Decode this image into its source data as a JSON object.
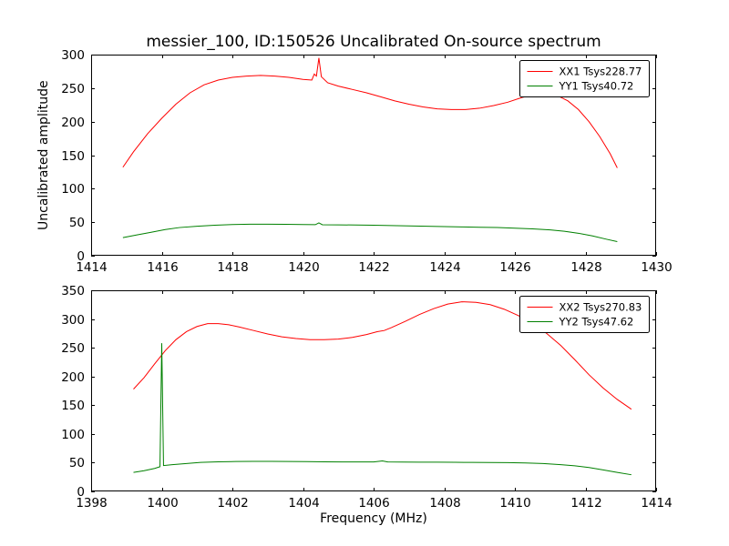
{
  "figure": {
    "title": "messier_100, ID:150526 Uncalibrated On-source spectrum",
    "xlabel": "Frequency (MHz)",
    "ylabel": "Uncalibrated amplitude",
    "background_color": "#ffffff",
    "frame_color": "#000000"
  },
  "chart_data": [
    {
      "type": "line",
      "subplot": "top",
      "xlim": [
        1414,
        1430
      ],
      "ylim": [
        0,
        300
      ],
      "xticks": [
        1414,
        1416,
        1418,
        1420,
        1422,
        1424,
        1426,
        1428,
        1430
      ],
      "yticks": [
        0,
        50,
        100,
        150,
        200,
        250,
        300
      ],
      "grid": false,
      "legend_position": "upper right",
      "series": [
        {
          "name": "XX1 Tsys228.77",
          "color": "#ff0000",
          "x": [
            1414.9,
            1415.2,
            1415.6,
            1416.0,
            1416.4,
            1416.8,
            1417.2,
            1417.6,
            1418.0,
            1418.4,
            1418.8,
            1419.2,
            1419.6,
            1420.0,
            1420.25,
            1420.32,
            1420.38,
            1420.45,
            1420.52,
            1420.7,
            1421.0,
            1421.4,
            1421.8,
            1422.2,
            1422.6,
            1423.0,
            1423.4,
            1423.8,
            1424.2,
            1424.6,
            1425.0,
            1425.4,
            1425.8,
            1426.2,
            1426.6,
            1426.9,
            1427.2,
            1427.5,
            1427.8,
            1428.1,
            1428.4,
            1428.7,
            1428.9
          ],
          "y": [
            132,
            155,
            182,
            205,
            226,
            243,
            255,
            262,
            266,
            268,
            269,
            268,
            266,
            263,
            262,
            271,
            268,
            295,
            267,
            258,
            253,
            248,
            243,
            237,
            231,
            226,
            222,
            219,
            218,
            218,
            220,
            224,
            229,
            236,
            241,
            242,
            239,
            231,
            218,
            200,
            178,
            152,
            131
          ]
        },
        {
          "name": "YY1 Tsys40.72",
          "color": "#008000",
          "x": [
            1414.9,
            1415.3,
            1415.7,
            1416.1,
            1416.5,
            1417.0,
            1417.5,
            1418.0,
            1418.5,
            1419.0,
            1419.5,
            1420.0,
            1420.35,
            1420.45,
            1420.55,
            1421.0,
            1421.5,
            1422.0,
            1422.5,
            1423.0,
            1423.5,
            1424.0,
            1424.5,
            1425.0,
            1425.5,
            1426.0,
            1426.5,
            1427.0,
            1427.4,
            1427.8,
            1428.2,
            1428.6,
            1428.9
          ],
          "y": [
            27,
            31,
            35,
            39,
            42,
            44,
            45.5,
            46.5,
            47,
            47,
            46.8,
            46.5,
            46.3,
            49,
            46.2,
            46,
            45.8,
            45.5,
            45,
            44.5,
            44,
            43.5,
            43,
            42.5,
            42,
            41,
            40,
            38.5,
            36.5,
            33.5,
            29.5,
            24.5,
            21
          ]
        }
      ]
    },
    {
      "type": "line",
      "subplot": "bottom",
      "xlim": [
        1398,
        1414
      ],
      "ylim": [
        0,
        350
      ],
      "xticks": [
        1398,
        1400,
        1402,
        1404,
        1406,
        1408,
        1410,
        1412,
        1414
      ],
      "yticks": [
        0,
        50,
        100,
        150,
        200,
        250,
        300,
        350
      ],
      "grid": false,
      "legend_position": "upper right",
      "series": [
        {
          "name": "XX2 Tsys270.83",
          "color": "#ff0000",
          "x": [
            1399.2,
            1399.5,
            1399.8,
            1400.1,
            1400.4,
            1400.7,
            1401.0,
            1401.3,
            1401.6,
            1401.9,
            1402.2,
            1402.6,
            1403.0,
            1403.4,
            1403.8,
            1404.2,
            1404.6,
            1405.0,
            1405.4,
            1405.8,
            1406.1,
            1406.3,
            1406.5,
            1406.9,
            1407.3,
            1407.7,
            1408.1,
            1408.5,
            1408.9,
            1409.3,
            1409.7,
            1410.1,
            1410.5,
            1410.9,
            1411.3,
            1411.7,
            1412.1,
            1412.5,
            1412.9,
            1413.3
          ],
          "y": [
            178,
            198,
            222,
            245,
            264,
            278,
            287,
            292,
            292,
            290,
            286,
            280,
            274,
            269,
            266,
            264,
            264,
            265,
            268,
            273,
            278,
            280,
            285,
            296,
            308,
            318,
            326,
            330,
            329,
            325,
            317,
            306,
            292,
            275,
            254,
            229,
            203,
            180,
            160,
            143
          ]
        },
        {
          "name": "YY2 Tsys47.62",
          "color": "#008000",
          "x": [
            1399.2,
            1399.5,
            1399.8,
            1399.95,
            1400.0,
            1400.05,
            1400.3,
            1400.7,
            1401.1,
            1401.6,
            1402.1,
            1402.6,
            1403.1,
            1403.6,
            1404.1,
            1404.6,
            1405.1,
            1405.6,
            1406.0,
            1406.25,
            1406.4,
            1406.8,
            1407.3,
            1407.8,
            1408.3,
            1408.8,
            1409.3,
            1409.8,
            1410.3,
            1410.8,
            1411.3,
            1411.7,
            1412.1,
            1412.5,
            1412.9,
            1413.3
          ],
          "y": [
            33,
            36,
            40,
            43,
            258,
            45,
            46.5,
            48.5,
            50.5,
            51.5,
            52,
            52.2,
            52.2,
            52,
            51.8,
            51.5,
            51.3,
            51.2,
            51.3,
            53,
            51.3,
            51,
            50.8,
            50.8,
            50.6,
            50.5,
            50.3,
            50,
            49.5,
            48.5,
            46.5,
            44.5,
            41.5,
            37.5,
            33,
            29
          ]
        }
      ]
    }
  ]
}
